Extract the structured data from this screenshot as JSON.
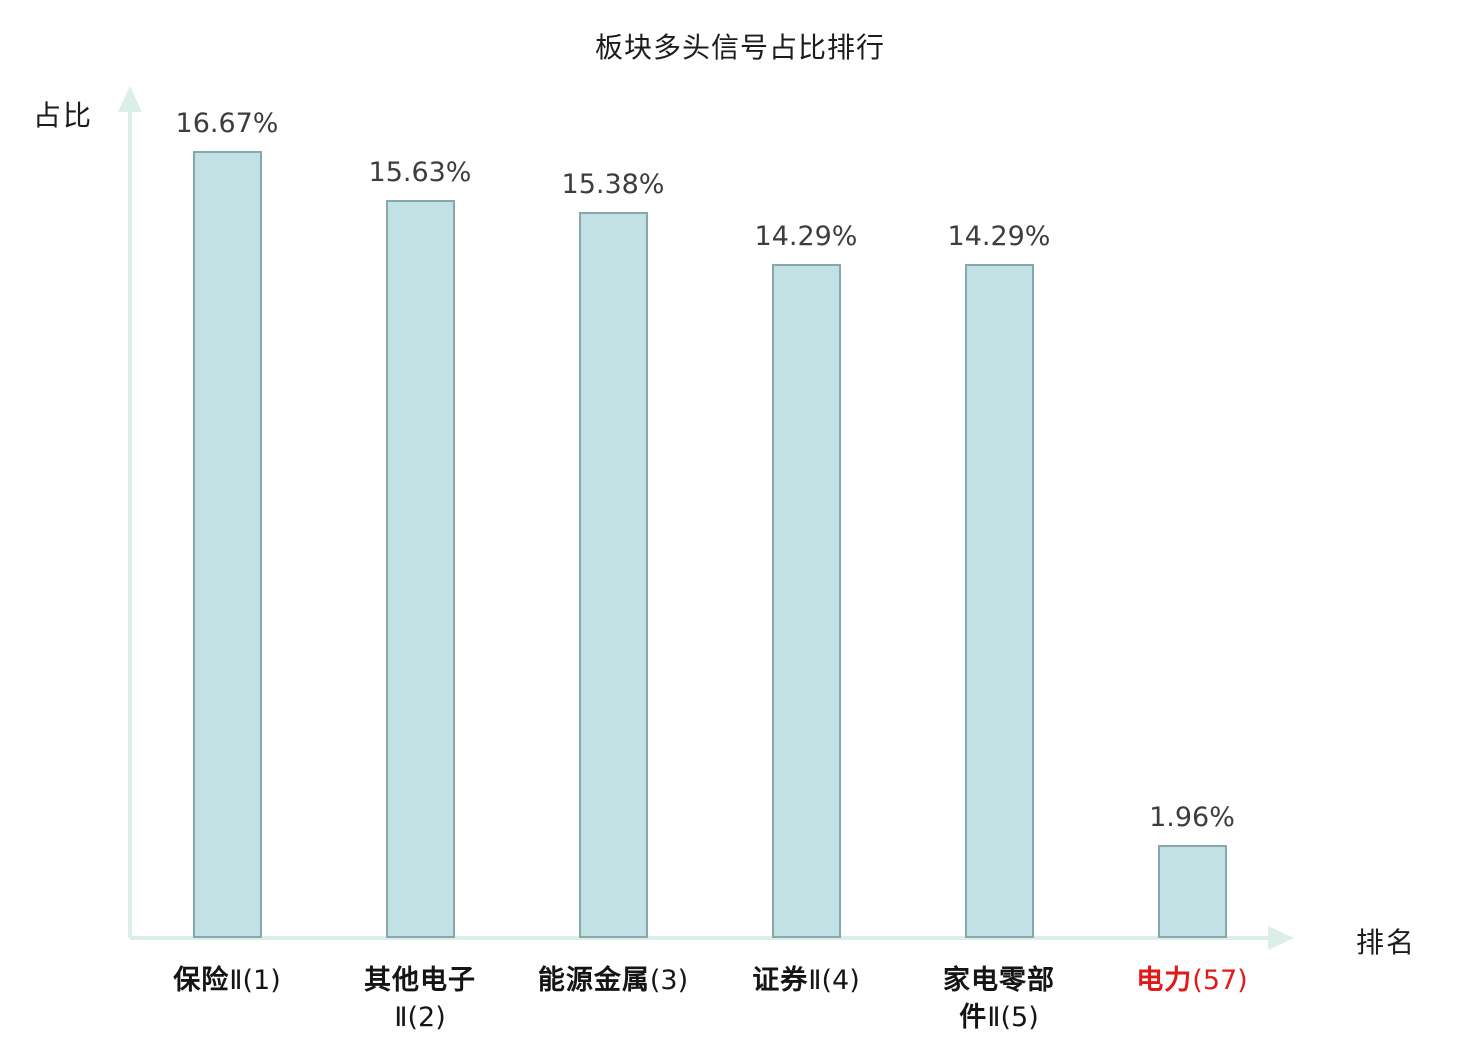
{
  "colors": {
    "background": "#ffffff",
    "bar_fill": "#c2e1e4",
    "bar_border": "#86a8ad",
    "axis": "#dceeea",
    "title_text": "#1c1c1c",
    "value_text": "#3d3d3d",
    "category_text": "#151515",
    "highlight_text": "#e31919"
  },
  "chart_data": {
    "type": "bar",
    "title": "板块多头信号占比排行",
    "xlabel": "排名",
    "ylabel": "占比",
    "categories": [
      "保险Ⅱ(1)",
      "其他电子Ⅱ(2)",
      "能源金属(3)",
      "证券Ⅱ(4)",
      "家电零部件Ⅱ(5)",
      "电力(57)"
    ],
    "values": [
      16.67,
      15.63,
      15.38,
      14.29,
      14.29,
      1.96
    ],
    "value_labels": [
      "16.67%",
      "15.63%",
      "15.38%",
      "14.29%",
      "14.29%",
      "1.96%"
    ],
    "category_lines": [
      [
        "保险Ⅱ(1)"
      ],
      [
        "其他电子",
        "Ⅱ(2)"
      ],
      [
        "能源金属(3)"
      ],
      [
        "证券Ⅱ(4)"
      ],
      [
        "家电零部",
        "件Ⅱ(5)"
      ],
      [
        "电力(57)"
      ]
    ],
    "highlight_index": 5,
    "ylim": [
      0,
      17.6
    ],
    "grid": false,
    "legend": null
  }
}
